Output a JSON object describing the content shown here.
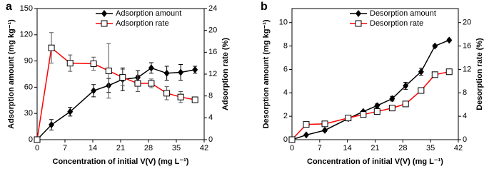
{
  "chart_data": [
    {
      "type": "line",
      "panel": "a",
      "xlabel": "Concentration of initial V(V) (mg L⁻¹)",
      "ylabel": "Adsorption amount (mg kg⁻¹)",
      "y2label": "Adsorption rate (%)",
      "x": [
        0,
        3.6,
        8.3,
        14.2,
        18,
        21.5,
        25.3,
        28.7,
        32.6,
        36.1,
        39.7
      ],
      "xlim": [
        0,
        42
      ],
      "xticks": [
        0,
        7,
        14,
        21,
        28,
        35,
        42
      ],
      "ylim": [
        0,
        150
      ],
      "yticks": [
        0,
        30,
        60,
        90,
        120,
        150
      ],
      "y2lim": [
        0,
        24
      ],
      "y2ticks": [
        0,
        4,
        8,
        12,
        16,
        20,
        24
      ],
      "legend": "upper right",
      "series": [
        {
          "name": "Adsorption amount",
          "color": "#000000",
          "marker": "diamond",
          "values": [
            0,
            17,
            32,
            56,
            62,
            69,
            71,
            82,
            76,
            77,
            80
          ],
          "errors": [
            0,
            6,
            5,
            7,
            8,
            13,
            8,
            6,
            8,
            9,
            4
          ]
        },
        {
          "name": "Adsorption rate",
          "color": "#ff0000",
          "marker": "square",
          "axis": "y2",
          "values": [
            0,
            16.8,
            14,
            13.9,
            12.6,
            11.4,
            10.3,
            10.3,
            8.5,
            7.8,
            7.3
          ],
          "errors": [
            0,
            2.8,
            1.5,
            1.2,
            5,
            1.5,
            1.5,
            0.8,
            1.2,
            1,
            0.5
          ]
        }
      ]
    },
    {
      "type": "line",
      "panel": "b",
      "xlabel": "Concentration of initial V(V) (mg L⁻¹)",
      "ylabel": "Desorption amount (mg kg⁻¹)",
      "y2label": "Desorption rate (%)",
      "x": [
        0,
        3.6,
        8.3,
        14.2,
        18,
        21.5,
        25.3,
        28.7,
        32.6,
        36.1,
        39.7
      ],
      "xlim": [
        0,
        42
      ],
      "xticks": [
        0,
        7,
        14,
        21,
        28,
        35,
        42
      ],
      "ylim": [
        0,
        11.2
      ],
      "yticks": [
        0,
        2,
        4,
        6,
        8,
        10
      ],
      "y2lim": [
        0,
        22.4
      ],
      "y2ticks": [
        0,
        4,
        8,
        12,
        16,
        20
      ],
      "legend": "upper right",
      "series": [
        {
          "name": "Desorption amount",
          "color": "#000000",
          "marker": "diamond",
          "values": [
            0,
            0.4,
            0.8,
            1.8,
            2.4,
            2.9,
            3.5,
            4.6,
            5.8,
            8,
            8.5
          ],
          "errors": [
            0,
            0.05,
            0.1,
            0.1,
            0.1,
            0.15,
            0.2,
            0.3,
            0.3,
            0.1,
            0.1
          ]
        },
        {
          "name": "Desorption rate",
          "color": "#ff0000",
          "marker": "square",
          "axis": "y2",
          "values": [
            0,
            2.6,
            2.7,
            3.7,
            4.3,
            4.8,
            5.4,
            6.1,
            8.4,
            11.1,
            11.6
          ],
          "errors": [
            0,
            0.2,
            0.2,
            0.2,
            0.2,
            0.2,
            0.3,
            0.3,
            0.3,
            0.2,
            0.2
          ]
        }
      ]
    }
  ]
}
